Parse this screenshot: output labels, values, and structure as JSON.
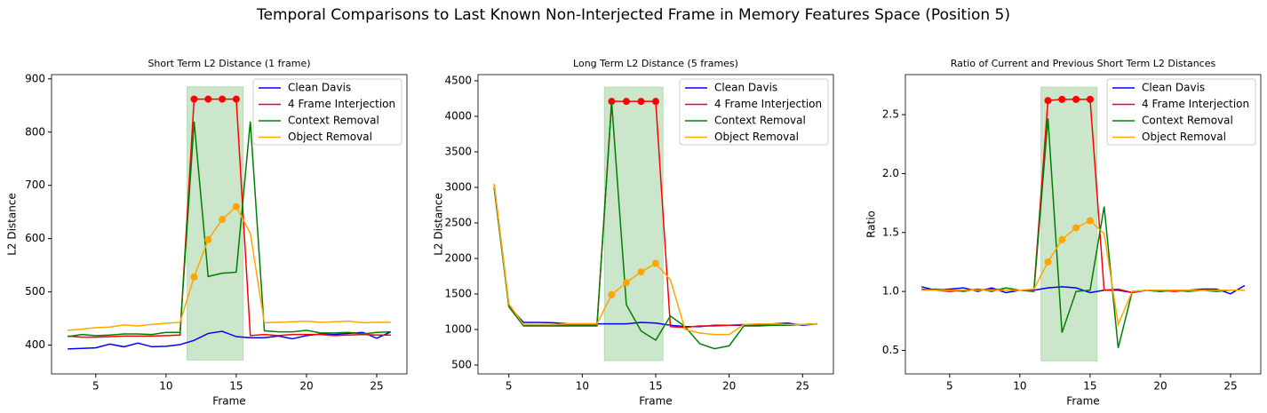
{
  "title": "Temporal Comparisons to Last Known Non-Interjected Frame in Memory Features Space (Position 5)",
  "chart_data": [
    {
      "type": "line",
      "title": "Short Term L2 Distance (1 frame)",
      "x_label": "Frame",
      "y_label": "L2 Distance",
      "x": [
        3,
        4,
        5,
        6,
        7,
        8,
        9,
        10,
        11,
        12,
        13,
        14,
        15,
        16,
        17,
        18,
        19,
        20,
        21,
        22,
        23,
        24,
        25,
        26
      ],
      "xlim": [
        1.85,
        27.15
      ],
      "xticks": [
        5,
        10,
        15,
        20,
        25
      ],
      "ylim": [
        346,
        908
      ],
      "yticks": [
        400,
        500,
        600,
        700,
        800,
        900
      ],
      "span": {
        "x": [
          11.5,
          15.5
        ],
        "y": [
          372,
          885
        ],
        "color": "#008000"
      },
      "legend": "upper right",
      "series": [
        {
          "name": "Clean Davis",
          "color": "#0000ff",
          "values": [
            393,
            394,
            395,
            402,
            397,
            404,
            397,
            398,
            401,
            409,
            422,
            426,
            416,
            414,
            414,
            417,
            412,
            418,
            421,
            420,
            422,
            424,
            413,
            425
          ]
        },
        {
          "name": "4 Frame Interjection",
          "color": "#ff0000",
          "markers": true,
          "values": [
            417,
            415,
            415,
            416,
            417,
            417,
            417,
            418,
            419,
            862,
            862,
            862,
            862,
            418,
            420,
            418,
            420,
            420,
            420,
            418,
            419,
            420,
            419,
            419
          ]
        },
        {
          "name": "Context Removal",
          "color": "#008000",
          "values": [
            416,
            420,
            418,
            419,
            421,
            421,
            420,
            424,
            424,
            820,
            529,
            535,
            537,
            820,
            427,
            425,
            425,
            428,
            423,
            423,
            424,
            421,
            424,
            425
          ]
        },
        {
          "name": "Object Removal",
          "color": "#ffa500",
          "markers": true,
          "values": [
            428,
            430,
            433,
            434,
            438,
            436,
            439,
            441,
            443,
            528,
            598,
            636,
            660,
            610,
            442,
            443,
            444,
            445,
            443,
            444,
            445,
            442,
            443,
            443
          ]
        }
      ]
    },
    {
      "type": "line",
      "title": "Long Term L2 Distance (5 frames)",
      "x_label": "Frame",
      "y_label": "L2 Distance",
      "x": [
        4,
        5,
        6,
        7,
        8,
        9,
        10,
        11,
        12,
        13,
        14,
        15,
        16,
        17,
        18,
        19,
        20,
        21,
        22,
        23,
        24,
        25,
        26
      ],
      "xlim": [
        2.9,
        27.1
      ],
      "xticks": [
        5,
        10,
        15,
        20,
        25
      ],
      "ylim": [
        375,
        4587
      ],
      "yticks": [
        500,
        1000,
        1500,
        2000,
        2500,
        3000,
        3500,
        4000,
        4500
      ],
      "span": {
        "x": [
          11.5,
          15.5
        ],
        "y": [
          562,
          4412
        ],
        "color": "#008000"
      },
      "legend": "upper right",
      "series": [
        {
          "name": "Clean Davis",
          "color": "#0000ff",
          "values": [
            3000,
            1330,
            1100,
            1100,
            1095,
            1080,
            1080,
            1080,
            1080,
            1080,
            1100,
            1090,
            1060,
            1040,
            1040,
            1060,
            1060,
            1060,
            1070,
            1080,
            1090,
            1060,
            1080
          ]
        },
        {
          "name": "4 Frame Interjection",
          "color": "#ff0000",
          "markers": true,
          "values": [
            3040,
            1350,
            1060,
            1060,
            1060,
            1060,
            1060,
            1060,
            4210,
            4210,
            4210,
            4210,
            1040,
            1030,
            1050,
            1050,
            1060,
            1070,
            1060,
            1060,
            1060,
            1070,
            1080
          ]
        },
        {
          "name": "Context Removal",
          "color": "#008000",
          "values": [
            3000,
            1320,
            1050,
            1050,
            1050,
            1050,
            1050,
            1050,
            4200,
            1350,
            980,
            850,
            1190,
            1040,
            800,
            730,
            770,
            1050,
            1050,
            1060,
            1060,
            1070,
            1080
          ]
        },
        {
          "name": "Object Removal",
          "color": "#ffa500",
          "markers": true,
          "values": [
            3050,
            1360,
            1070,
            1070,
            1070,
            1080,
            1080,
            1080,
            1490,
            1660,
            1810,
            1930,
            1700,
            1000,
            950,
            930,
            930,
            1070,
            1080,
            1080,
            1070,
            1070,
            1080
          ]
        }
      ]
    },
    {
      "type": "line",
      "title": "Ratio of Current and Previous Short Term L2 Distances",
      "x_label": "Frame",
      "y_label": "Ratio",
      "x": [
        3,
        4,
        5,
        6,
        7,
        8,
        9,
        10,
        11,
        12,
        13,
        14,
        15,
        16,
        17,
        18,
        19,
        20,
        21,
        22,
        23,
        24,
        25,
        26
      ],
      "xlim": [
        1.85,
        27.15
      ],
      "xticks": [
        5,
        10,
        15,
        20,
        25
      ],
      "ylim": [
        0.3,
        2.84
      ],
      "yticks": [
        0.5,
        {
          "value": 1,
          "label": "1.0"
        },
        1.5,
        {
          "value": 2,
          "label": "2.0"
        },
        2.5
      ],
      "span": {
        "x": [
          11.5,
          15.5
        ],
        "y": [
          0.41,
          2.734
        ],
        "color": "#008000"
      },
      "legend": "upper right",
      "series": [
        {
          "name": "Clean Davis",
          "color": "#0000ff",
          "values": [
            1.04,
            1.01,
            1.02,
            1.03,
            1.0,
            1.03,
            0.99,
            1.01,
            1.01,
            1.03,
            1.04,
            1.03,
            0.99,
            1.01,
            1.01,
            0.99,
            1.01,
            1.0,
            1.01,
            1.01,
            1.02,
            1.02,
            0.98,
            1.05
          ]
        },
        {
          "name": "4 Frame Interjection",
          "color": "#ff0000",
          "markers": true,
          "values": [
            1.02,
            1.01,
            1.0,
            1.01,
            1.01,
            1.02,
            1.01,
            1.01,
            1.01,
            2.62,
            2.63,
            2.63,
            2.63,
            1.01,
            1.02,
            0.99,
            1.01,
            1.01,
            1.0,
            1.01,
            1.01,
            1.01,
            1.01,
            1.01
          ]
        },
        {
          "name": "Context Removal",
          "color": "#008000",
          "values": [
            1.01,
            1.02,
            1.01,
            1.0,
            1.02,
            1.0,
            1.03,
            1.01,
            1.0,
            2.47,
            0.65,
            1.0,
            1.01,
            1.72,
            0.52,
            1.0,
            1.01,
            1.0,
            1.01,
            1.0,
            1.01,
            1.0,
            1.01,
            1.01
          ]
        },
        {
          "name": "Object Removal",
          "color": "#ffa500",
          "markers": true,
          "values": [
            1.01,
            1.01,
            1.01,
            1.01,
            1.01,
            1.01,
            1.01,
            1.01,
            1.02,
            1.25,
            1.44,
            1.54,
            1.6,
            1.49,
            0.72,
            1.0,
            1.01,
            1.01,
            1.01,
            1.01,
            1.01,
            1.01,
            1.01,
            1.01
          ]
        }
      ]
    }
  ]
}
